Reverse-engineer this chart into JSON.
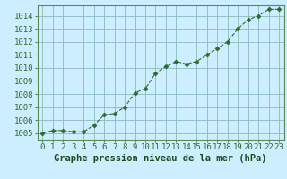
{
  "x": [
    0,
    1,
    2,
    3,
    4,
    5,
    6,
    7,
    8,
    9,
    10,
    11,
    12,
    13,
    14,
    15,
    16,
    17,
    18,
    19,
    20,
    21,
    22,
    23
  ],
  "y": [
    1005.0,
    1005.2,
    1005.2,
    1005.1,
    1005.1,
    1005.6,
    1006.4,
    1006.5,
    1007.0,
    1008.1,
    1008.4,
    1009.6,
    1010.1,
    1010.5,
    1010.3,
    1010.5,
    1011.0,
    1011.5,
    1012.0,
    1013.0,
    1013.7,
    1014.0,
    1014.5,
    1014.5
  ],
  "line_color": "#2d6a2d",
  "marker": "D",
  "marker_size": 2.5,
  "bg_color": "#cceeff",
  "grid_color": "#88bbbb",
  "xlabel": "Graphe pression niveau de la mer (hPa)",
  "xlabel_fontsize": 7.5,
  "ylabel_ticks": [
    1005,
    1006,
    1007,
    1008,
    1009,
    1010,
    1011,
    1012,
    1013,
    1014
  ],
  "xlim": [
    -0.5,
    23.5
  ],
  "ylim": [
    1004.5,
    1014.8
  ],
  "tick_fontsize": 6.5,
  "xlabel_color": "#1a4d1a",
  "tick_color": "#2d6a2d",
  "spine_color": "#5a8a5a"
}
